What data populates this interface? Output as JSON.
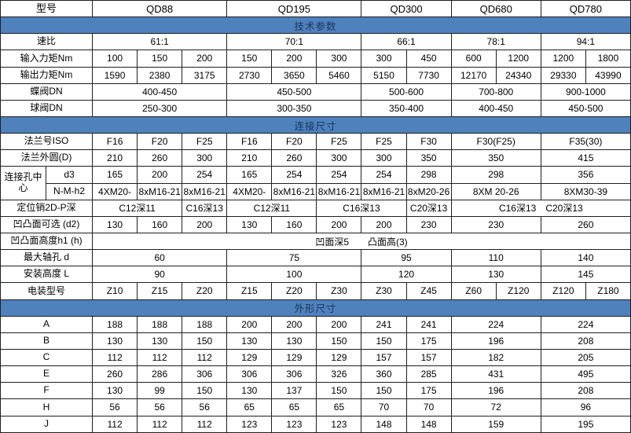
{
  "colors": {
    "band_bg": "#4f81bd",
    "band_text": "#17375e",
    "border": "#1f1f1f",
    "cell_bg": "#ffffff",
    "text": "#000000"
  },
  "table": {
    "rows": [
      {
        "kind": "header",
        "label": "型号",
        "cells": [
          {
            "t": "QD88",
            "s": 3
          },
          {
            "t": "QD195",
            "s": 3
          },
          {
            "t": "QD300",
            "s": 2
          },
          {
            "t": "QD680",
            "s": 2
          },
          {
            "t": "QD780",
            "s": 2
          }
        ]
      },
      {
        "kind": "section",
        "label": "技术参数"
      },
      {
        "kind": "data",
        "label": "速比",
        "cells": [
          {
            "t": "61:1",
            "s": 3
          },
          {
            "t": "70:1",
            "s": 3
          },
          {
            "t": "66:1",
            "s": 2
          },
          {
            "t": "78:1",
            "s": 2
          },
          {
            "t": "94:1",
            "s": 2
          }
        ]
      },
      {
        "kind": "data",
        "label": "输入力矩Nm",
        "cells": [
          {
            "t": "100"
          },
          {
            "t": "150"
          },
          {
            "t": "200"
          },
          {
            "t": "150"
          },
          {
            "t": "200"
          },
          {
            "t": "300"
          },
          {
            "t": "300"
          },
          {
            "t": "450"
          },
          {
            "t": "600"
          },
          {
            "t": "1200"
          },
          {
            "t": "1200"
          },
          {
            "t": "1800"
          }
        ]
      },
      {
        "kind": "data",
        "label": "输出力矩Nm",
        "cells": [
          {
            "t": "1590"
          },
          {
            "t": "2380"
          },
          {
            "t": "3175"
          },
          {
            "t": "2730"
          },
          {
            "t": "3650"
          },
          {
            "t": "5460"
          },
          {
            "t": "5150"
          },
          {
            "t": "7730"
          },
          {
            "t": "12170"
          },
          {
            "t": "24340"
          },
          {
            "t": "29330"
          },
          {
            "t": "43990"
          }
        ]
      },
      {
        "kind": "data",
        "label": "蝶阀DN",
        "cells": [
          {
            "t": "400-450",
            "s": 3
          },
          {
            "t": "450-500",
            "s": 3
          },
          {
            "t": "500-600",
            "s": 2
          },
          {
            "t": "700-800",
            "s": 2
          },
          {
            "t": "900-1000",
            "s": 2
          }
        ]
      },
      {
        "kind": "data",
        "label": "球阀DN",
        "cells": [
          {
            "t": "250-300",
            "s": 3
          },
          {
            "t": "300-350",
            "s": 3
          },
          {
            "t": "350-400",
            "s": 2
          },
          {
            "t": "400-450",
            "s": 2
          },
          {
            "t": "450-500",
            "s": 2
          }
        ]
      },
      {
        "kind": "section",
        "label": "连接尺寸"
      },
      {
        "kind": "data",
        "label": "法兰号ISO",
        "cells": [
          {
            "t": "F16"
          },
          {
            "t": "F20"
          },
          {
            "t": "F25"
          },
          {
            "t": "F16"
          },
          {
            "t": "F20"
          },
          {
            "t": "F25"
          },
          {
            "t": "F25"
          },
          {
            "t": "F30"
          },
          {
            "t": "F30(F25)",
            "s": 2
          },
          {
            "t": "F35(30)",
            "s": 2
          }
        ]
      },
      {
        "kind": "data",
        "label": "法兰外圆(D)",
        "cells": [
          {
            "t": "210"
          },
          {
            "t": "260"
          },
          {
            "t": "300"
          },
          {
            "t": "210"
          },
          {
            "t": "260"
          },
          {
            "t": "300"
          },
          {
            "t": "300"
          },
          {
            "t": "350"
          },
          {
            "t": "350",
            "s": 2
          },
          {
            "t": "415",
            "s": 2
          }
        ]
      },
      {
        "kind": "data",
        "label": "连接孔中心",
        "labelRowspan": 2,
        "sublabel": "d3",
        "cells": [
          {
            "t": "165"
          },
          {
            "t": "200"
          },
          {
            "t": "254"
          },
          {
            "t": "165"
          },
          {
            "t": "254"
          },
          {
            "t": "254"
          },
          {
            "t": "254"
          },
          {
            "t": "298"
          },
          {
            "t": "298",
            "s": 2
          },
          {
            "t": "356",
            "s": 2
          }
        ]
      },
      {
        "kind": "data",
        "sublabel": "N-M-h2",
        "cells": [
          {
            "t": "4XM20-"
          },
          {
            "t": "8xM16-21"
          },
          {
            "t": "8xM16-21"
          },
          {
            "t": "4XM20-"
          },
          {
            "t": "8xM16-21"
          },
          {
            "t": "8xM16-21"
          },
          {
            "t": "8xM16-21"
          },
          {
            "t": "8xM20-26"
          },
          {
            "t": "8XM 20-26",
            "s": 2
          },
          {
            "t": "8XM30-39",
            "s": 2
          }
        ]
      },
      {
        "kind": "data",
        "label": "定位销2D-P深",
        "cells": [
          {
            "t": "C12深11",
            "s": 2
          },
          {
            "t": "C16深13"
          },
          {
            "t": "C12深11",
            "s": 2
          },
          {
            "t": "C16深13",
            "s": 2
          },
          {
            "t": "C20深13"
          },
          {
            "t": "C16深13　C20深13",
            "s": 4
          }
        ]
      },
      {
        "kind": "data",
        "label": "凹凸面可选 (d2)",
        "cells": [
          {
            "t": "130"
          },
          {
            "t": "160"
          },
          {
            "t": "200"
          },
          {
            "t": "130"
          },
          {
            "t": "160"
          },
          {
            "t": "200"
          },
          {
            "t": "200"
          },
          {
            "t": "230"
          },
          {
            "t": "230",
            "s": 2
          },
          {
            "t": "260",
            "s": 2
          }
        ]
      },
      {
        "kind": "data",
        "label": "凹凸面高度h1 (h)",
        "cells": [
          {
            "t": "凹面深5　　凸面高(3)",
            "s": 12
          }
        ]
      },
      {
        "kind": "data",
        "label": "最大轴孔 d",
        "cells": [
          {
            "t": "60",
            "s": 3
          },
          {
            "t": "75",
            "s": 3
          },
          {
            "t": "95",
            "s": 2
          },
          {
            "t": "110",
            "s": 2
          },
          {
            "t": "140",
            "s": 2
          }
        ]
      },
      {
        "kind": "data",
        "label": "安装高度 L",
        "cells": [
          {
            "t": "90",
            "s": 3
          },
          {
            "t": "100",
            "s": 3
          },
          {
            "t": "120",
            "s": 2
          },
          {
            "t": "130",
            "s": 2
          },
          {
            "t": "145",
            "s": 2
          }
        ]
      },
      {
        "kind": "data",
        "label": "电装型号",
        "cells": [
          {
            "t": "Z10"
          },
          {
            "t": "Z15"
          },
          {
            "t": "Z20"
          },
          {
            "t": "Z15"
          },
          {
            "t": "Z20"
          },
          {
            "t": "Z30"
          },
          {
            "t": "Z30"
          },
          {
            "t": "Z45"
          },
          {
            "t": "Z60"
          },
          {
            "t": "Z120"
          },
          {
            "t": "Z120"
          },
          {
            "t": "Z180"
          }
        ]
      },
      {
        "kind": "section",
        "label": "外形尺寸"
      },
      {
        "kind": "data",
        "label": "A",
        "cells": [
          {
            "t": "188"
          },
          {
            "t": "188"
          },
          {
            "t": "188"
          },
          {
            "t": "200"
          },
          {
            "t": "200"
          },
          {
            "t": "200"
          },
          {
            "t": "241"
          },
          {
            "t": "241"
          },
          {
            "t": "224",
            "s": 2
          },
          {
            "t": "224",
            "s": 2
          }
        ]
      },
      {
        "kind": "data",
        "label": "B",
        "cells": [
          {
            "t": "130"
          },
          {
            "t": "130"
          },
          {
            "t": "150"
          },
          {
            "t": "130"
          },
          {
            "t": "130"
          },
          {
            "t": "150"
          },
          {
            "t": "150"
          },
          {
            "t": "175"
          },
          {
            "t": "196",
            "s": 2
          },
          {
            "t": "208",
            "s": 2
          }
        ]
      },
      {
        "kind": "data",
        "label": "C",
        "cells": [
          {
            "t": "112"
          },
          {
            "t": "112"
          },
          {
            "t": "112"
          },
          {
            "t": "129"
          },
          {
            "t": "129"
          },
          {
            "t": "129"
          },
          {
            "t": "157"
          },
          {
            "t": "157"
          },
          {
            "t": "182",
            "s": 2
          },
          {
            "t": "205",
            "s": 2
          }
        ]
      },
      {
        "kind": "data",
        "label": "E",
        "cells": [
          {
            "t": "260"
          },
          {
            "t": "286"
          },
          {
            "t": "306"
          },
          {
            "t": "306"
          },
          {
            "t": "306"
          },
          {
            "t": "326"
          },
          {
            "t": "360"
          },
          {
            "t": "285"
          },
          {
            "t": "431",
            "s": 2
          },
          {
            "t": "495",
            "s": 2
          }
        ]
      },
      {
        "kind": "data",
        "label": "F",
        "cells": [
          {
            "t": "130"
          },
          {
            "t": "99"
          },
          {
            "t": "150"
          },
          {
            "t": "130"
          },
          {
            "t": "137"
          },
          {
            "t": "150"
          },
          {
            "t": "150"
          },
          {
            "t": "175"
          },
          {
            "t": "196",
            "s": 2
          },
          {
            "t": "208",
            "s": 2
          }
        ]
      },
      {
        "kind": "data",
        "label": "H",
        "cells": [
          {
            "t": "56"
          },
          {
            "t": "56"
          },
          {
            "t": "56"
          },
          {
            "t": "65"
          },
          {
            "t": "65"
          },
          {
            "t": "65"
          },
          {
            "t": "70"
          },
          {
            "t": "70"
          },
          {
            "t": "72",
            "s": 2
          },
          {
            "t": "96",
            "s": 2
          }
        ]
      },
      {
        "kind": "data",
        "label": "J",
        "cells": [
          {
            "t": "112"
          },
          {
            "t": "112"
          },
          {
            "t": "112"
          },
          {
            "t": "123"
          },
          {
            "t": "123"
          },
          {
            "t": "123"
          },
          {
            "t": "148"
          },
          {
            "t": "148"
          },
          {
            "t": "159",
            "s": 2
          },
          {
            "t": "195",
            "s": 2
          }
        ]
      }
    ]
  }
}
